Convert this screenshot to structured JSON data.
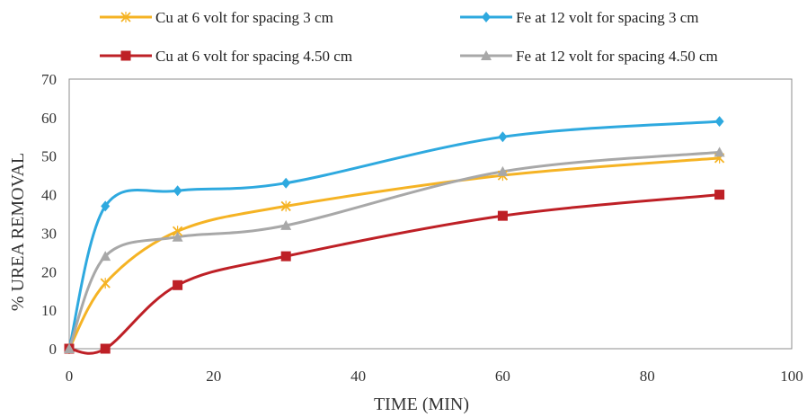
{
  "chart_data": {
    "type": "line",
    "title": "",
    "xlabel": "TIME (MIN)",
    "ylabel": "% UREA REMOVAL",
    "xlim": [
      0,
      100
    ],
    "ylim": [
      0,
      70
    ],
    "x_ticks": [
      0,
      20,
      40,
      60,
      80,
      100
    ],
    "y_ticks": [
      0,
      10,
      20,
      30,
      40,
      50,
      60,
      70
    ],
    "grid": false,
    "legend_position": "top",
    "x": [
      0,
      5,
      15,
      30,
      60,
      90
    ],
    "series": [
      {
        "name": "Cu at 6 volt for spacing 3 cm",
        "color": "#F5B324",
        "marker": "x",
        "values": [
          0,
          17,
          30.5,
          37,
          45,
          49.5
        ]
      },
      {
        "name": "Fe at 12 volt for spacing 3 cm",
        "color": "#2EA9DF",
        "marker": "diamond",
        "values": [
          0,
          37,
          41,
          43,
          55,
          59
        ]
      },
      {
        "name": "Cu at 6 volt for spacing 4.50 cm",
        "color": "#BE2026",
        "marker": "square",
        "values": [
          0,
          0,
          16.5,
          24,
          34.5,
          40
        ]
      },
      {
        "name": "Fe at 12 volt for spacing 4.50 cm",
        "color": "#A8A8A8",
        "marker": "triangle",
        "values": [
          0,
          24,
          29,
          32,
          46,
          51
        ]
      }
    ]
  }
}
